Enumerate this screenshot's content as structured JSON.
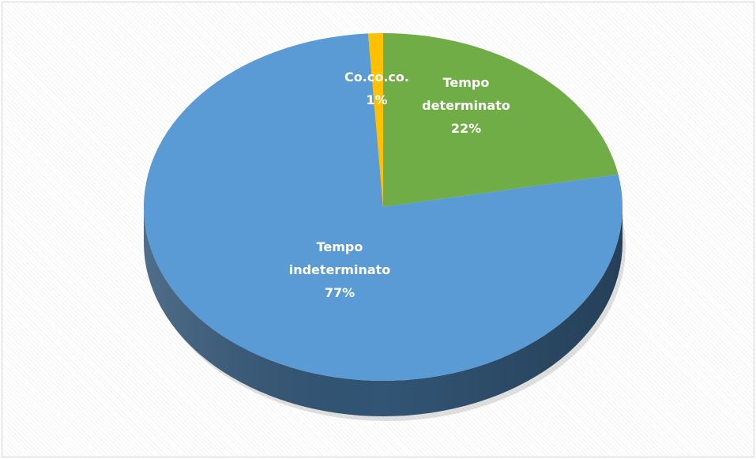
{
  "chart_data": {
    "type": "pie3d",
    "categories": [
      "Tempo determinato",
      "Tempo indeterminato",
      "Co.co.co."
    ],
    "values": [
      22,
      77,
      1
    ],
    "value_labels": [
      "22%",
      "77%",
      "1%"
    ],
    "colors": [
      "#70ad47",
      "#5b9bd5",
      "#ffc000"
    ]
  }
}
